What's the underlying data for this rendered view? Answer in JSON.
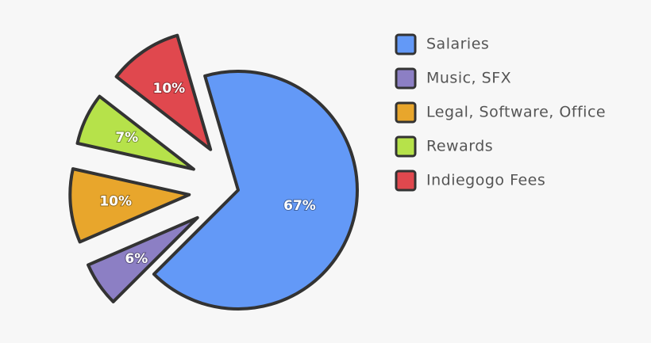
{
  "chart_data": {
    "type": "pie",
    "categories": [
      "Salaries",
      "Music, SFX",
      "Legal, Software, Office",
      "Rewards",
      "Indiegogo Fees"
    ],
    "values": [
      67,
      6,
      10,
      7,
      10
    ],
    "value_labels": [
      "67%",
      "6%",
      "10%",
      "7%",
      "10%"
    ],
    "colors": [
      "#6399f7",
      "#8c7fc4",
      "#e8a62c",
      "#b6e24a",
      "#e0484e"
    ],
    "legend": "right"
  }
}
